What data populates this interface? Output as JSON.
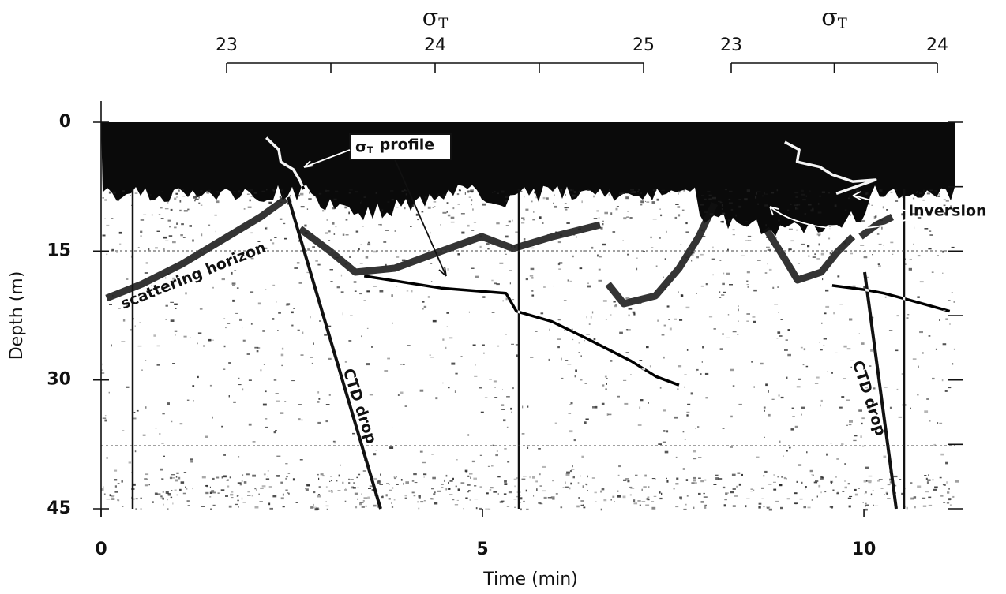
{
  "chart_data": {
    "type": "echogram",
    "xlabel": "Time (min)",
    "ylabel": "Depth (m)",
    "xlim": [
      0,
      11.2
    ],
    "xticks": [
      0,
      5,
      10
    ],
    "ylim": [
      0,
      45
    ],
    "yticks": [
      0,
      15,
      30,
      45
    ],
    "y_minor_ticks": [
      7.5,
      22.5,
      37.5
    ],
    "top_axes": [
      {
        "symbol": "σ",
        "subscript": "T",
        "xlim": [
          23,
          25
        ],
        "xticks": [
          23,
          24,
          25
        ],
        "minor_ticks": [
          23.5,
          24.5
        ]
      },
      {
        "symbol": "σ",
        "subscript": "T",
        "xlim": [
          23,
          24
        ],
        "xticks": [
          23,
          24
        ],
        "minor_ticks": [
          23.5
        ]
      }
    ],
    "profiles": [
      {
        "sigma": [
          23.19,
          23.25,
          23.26,
          23.32,
          23.35,
          23.37,
          null,
          23.66,
          24.03,
          24.34,
          24.39,
          24.56,
          24.73,
          24.94,
          25.06,
          25.17
        ],
        "depth": [
          1.8,
          3.2,
          4.6,
          5.5,
          6.7,
          7.8,
          null,
          17.9,
          19.3,
          19.9,
          22.0,
          23.2,
          25.2,
          27.8,
          29.6,
          30.6
        ]
      },
      {
        "sigma": [
          23.26,
          23.33,
          23.32,
          23.43,
          23.49,
          23.59,
          23.7,
          23.51,
          null,
          23.49,
          23.65,
          23.74,
          23.85,
          24.06
        ],
        "depth": [
          2.3,
          3.2,
          4.6,
          5.2,
          6.1,
          6.9,
          6.7,
          8.3,
          null,
          19.0,
          19.5,
          19.9,
          20.6,
          22.0
        ]
      }
    ],
    "annotations": {
      "profile": {
        "symbol": "σ",
        "subscript": "T",
        "text": "profile"
      },
      "inversion": "inversion",
      "horizon": "scattering horizon",
      "ctd": [
        "CTD drop",
        "CTD drop"
      ]
    }
  }
}
